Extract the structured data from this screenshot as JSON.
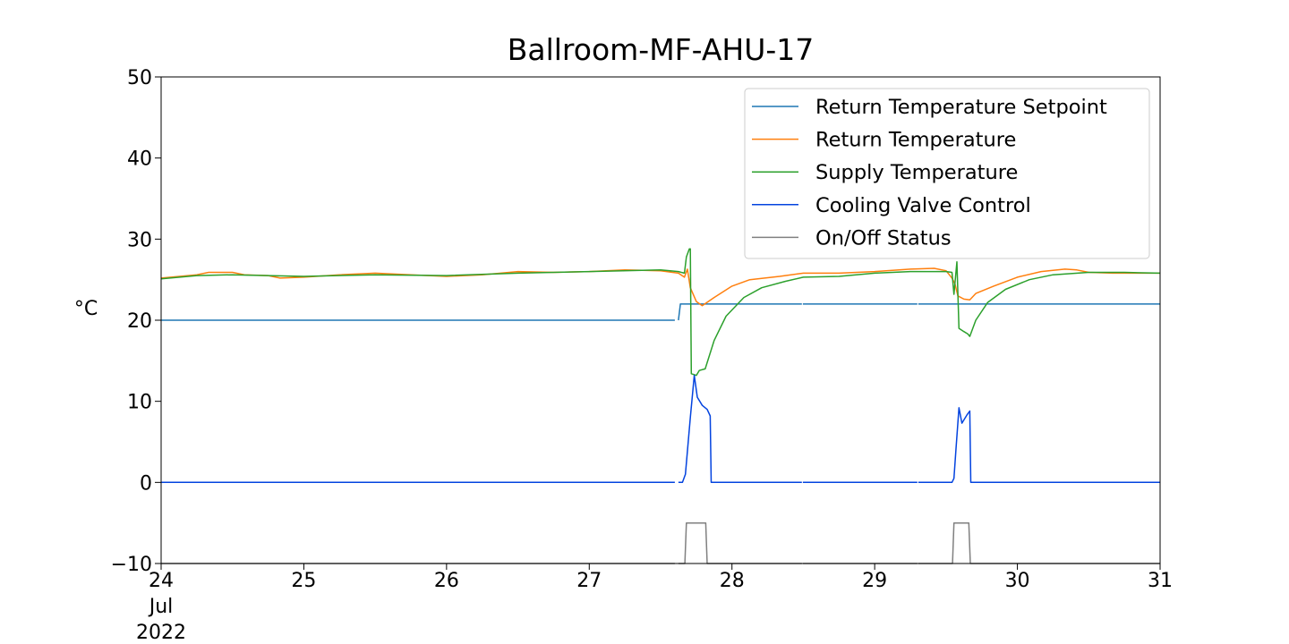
{
  "chart_data": {
    "type": "line",
    "title": "Ballroom-MF-AHU-17",
    "ylabel": "°C",
    "xlabel": "",
    "ylim": [
      -10,
      50
    ],
    "xlim": [
      "2022-07-24",
      "2022-07-31"
    ],
    "yticks": [
      -10,
      0,
      10,
      20,
      30,
      40,
      50
    ],
    "xticks": [
      {
        "x": "2022-07-24",
        "lines": [
          "24",
          "Jul",
          "2022"
        ]
      },
      {
        "x": "2022-07-25",
        "lines": [
          "25"
        ]
      },
      {
        "x": "2022-07-26",
        "lines": [
          "26"
        ]
      },
      {
        "x": "2022-07-27",
        "lines": [
          "27"
        ]
      },
      {
        "x": "2022-07-28",
        "lines": [
          "28"
        ]
      },
      {
        "x": "2022-07-29",
        "lines": [
          "29"
        ]
      },
      {
        "x": "2022-07-30",
        "lines": [
          "30"
        ]
      },
      {
        "x": "2022-07-31",
        "lines": [
          "31"
        ]
      }
    ],
    "grid": false,
    "legend_position": "top-right",
    "series": [
      {
        "name": "Return Temperature Setpoint",
        "color": "#1f77b4",
        "segments": [
          [
            [
              "2022-07-24T00:00",
              20
            ],
            [
              "2022-07-27T14:24",
              20
            ]
          ],
          [
            [
              "2022-07-27T15:00",
              20
            ],
            [
              "2022-07-27T15:20",
              22
            ],
            [
              "2022-07-28T11:45",
              22
            ]
          ],
          [
            [
              "2022-07-28T11:55",
              22
            ],
            [
              "2022-07-29T07:10",
              22
            ]
          ],
          [
            [
              "2022-07-29T07:20",
              22
            ],
            [
              "2022-07-31T00:00",
              22
            ]
          ]
        ]
      },
      {
        "name": "Return Temperature",
        "color": "#ff7f0e",
        "segments": [
          [
            [
              "2022-07-24T00:00",
              25.2
            ],
            [
              "2022-07-24T06:00",
              25.6
            ],
            [
              "2022-07-24T08:00",
              25.9
            ],
            [
              "2022-07-24T12:00",
              25.9
            ],
            [
              "2022-07-24T14:00",
              25.6
            ],
            [
              "2022-07-24T18:00",
              25.5
            ],
            [
              "2022-07-24T20:00",
              25.2
            ],
            [
              "2022-07-25T00:00",
              25.3
            ],
            [
              "2022-07-25T06:00",
              25.6
            ],
            [
              "2022-07-25T12:00",
              25.8
            ],
            [
              "2022-07-25T18:00",
              25.6
            ],
            [
              "2022-07-26T00:00",
              25.4
            ],
            [
              "2022-07-26T06:00",
              25.6
            ],
            [
              "2022-07-26T12:00",
              26.0
            ],
            [
              "2022-07-26T18:00",
              25.9
            ],
            [
              "2022-07-27T00:00",
              26.0
            ],
            [
              "2022-07-27T06:00",
              26.2
            ],
            [
              "2022-07-27T12:00",
              26.1
            ],
            [
              "2022-07-27T15:00",
              25.8
            ],
            [
              "2022-07-27T16:00",
              25.3
            ],
            [
              "2022-07-27T16:30",
              26.3
            ],
            [
              "2022-07-27T17:00",
              24.0
            ],
            [
              "2022-07-27T18:00",
              22.3
            ],
            [
              "2022-07-27T19:00",
              21.8
            ],
            [
              "2022-07-27T21:00",
              22.8
            ],
            [
              "2022-07-28T00:00",
              24.2
            ],
            [
              "2022-07-28T03:00",
              25.0
            ],
            [
              "2022-07-28T08:00",
              25.4
            ],
            [
              "2022-07-28T12:00",
              25.8
            ],
            [
              "2022-07-28T18:00",
              25.8
            ],
            [
              "2022-07-29T00:00",
              26.0
            ],
            [
              "2022-07-29T06:00",
              26.3
            ],
            [
              "2022-07-29T10:00",
              26.4
            ],
            [
              "2022-07-29T12:00",
              26.1
            ],
            [
              "2022-07-29T13:00",
              25.2
            ],
            [
              "2022-07-29T13:30",
              24.5
            ],
            [
              "2022-07-29T14:00",
              23.0
            ],
            [
              "2022-07-29T15:00",
              22.6
            ],
            [
              "2022-07-29T16:00",
              22.5
            ],
            [
              "2022-07-29T17:00",
              23.3
            ],
            [
              "2022-07-29T20:00",
              24.2
            ],
            [
              "2022-07-30T00:00",
              25.3
            ],
            [
              "2022-07-30T04:00",
              26.0
            ],
            [
              "2022-07-30T08:00",
              26.3
            ],
            [
              "2022-07-30T10:00",
              26.2
            ],
            [
              "2022-07-30T12:00",
              25.9
            ],
            [
              "2022-07-30T16:00",
              25.8
            ],
            [
              "2022-07-31T00:00",
              25.8
            ]
          ]
        ]
      },
      {
        "name": "Supply Temperature",
        "color": "#2ca02c",
        "segments": [
          [
            [
              "2022-07-24T00:00",
              25.1
            ],
            [
              "2022-07-24T06:00",
              25.5
            ],
            [
              "2022-07-24T12:00",
              25.6
            ],
            [
              "2022-07-24T18:00",
              25.5
            ],
            [
              "2022-07-25T00:00",
              25.4
            ],
            [
              "2022-07-25T12:00",
              25.6
            ],
            [
              "2022-07-26T00:00",
              25.5
            ],
            [
              "2022-07-26T12:00",
              25.8
            ],
            [
              "2022-07-27T00:00",
              26.0
            ],
            [
              "2022-07-27T12:00",
              26.2
            ],
            [
              "2022-07-27T15:00",
              26.0
            ],
            [
              "2022-07-27T16:00",
              25.8
            ],
            [
              "2022-07-27T16:20",
              27.8
            ],
            [
              "2022-07-27T16:50",
              28.8
            ],
            [
              "2022-07-27T17:00",
              28.8
            ],
            [
              "2022-07-27T17:10",
              13.4
            ],
            [
              "2022-07-27T18:00",
              13.2
            ],
            [
              "2022-07-27T18:30",
              13.8
            ],
            [
              "2022-07-27T19:30",
              14.0
            ],
            [
              "2022-07-27T21:00",
              17.5
            ],
            [
              "2022-07-27T23:00",
              20.5
            ],
            [
              "2022-07-28T02:00",
              22.8
            ],
            [
              "2022-07-28T05:00",
              24.0
            ],
            [
              "2022-07-28T09:00",
              24.8
            ],
            [
              "2022-07-28T12:00",
              25.3
            ],
            [
              "2022-07-28T18:00",
              25.4
            ],
            [
              "2022-07-29T00:00",
              25.8
            ],
            [
              "2022-07-29T06:00",
              26.0
            ],
            [
              "2022-07-29T12:00",
              26.0
            ],
            [
              "2022-07-29T13:00",
              25.9
            ],
            [
              "2022-07-29T13:20",
              23.2
            ],
            [
              "2022-07-29T13:50",
              27.2
            ],
            [
              "2022-07-29T14:10",
              19.0
            ],
            [
              "2022-07-29T15:00",
              18.6
            ],
            [
              "2022-07-29T15:40",
              18.3
            ],
            [
              "2022-07-29T16:00",
              18.0
            ],
            [
              "2022-07-29T17:00",
              20.0
            ],
            [
              "2022-07-29T19:00",
              22.2
            ],
            [
              "2022-07-29T22:00",
              23.8
            ],
            [
              "2022-07-30T02:00",
              25.0
            ],
            [
              "2022-07-30T06:00",
              25.6
            ],
            [
              "2022-07-30T12:00",
              25.9
            ],
            [
              "2022-07-30T18:00",
              25.9
            ],
            [
              "2022-07-31T00:00",
              25.8
            ]
          ]
        ]
      },
      {
        "name": "Cooling Valve Control",
        "color": "#0343df",
        "segments": [
          [
            [
              "2022-07-24T00:00",
              0
            ],
            [
              "2022-07-27T14:24",
              0
            ]
          ],
          [
            [
              "2022-07-27T15:00",
              0
            ],
            [
              "2022-07-27T15:40",
              0
            ],
            [
              "2022-07-27T16:10",
              1.0
            ],
            [
              "2022-07-27T17:00",
              8.0
            ],
            [
              "2022-07-27T17:40",
              13.2
            ],
            [
              "2022-07-27T18:10",
              10.5
            ],
            [
              "2022-07-27T19:00",
              9.5
            ],
            [
              "2022-07-27T19:50",
              9.0
            ],
            [
              "2022-07-27T20:20",
              8.2
            ],
            [
              "2022-07-27T20:30",
              0
            ],
            [
              "2022-07-28T11:45",
              0
            ]
          ],
          [
            [
              "2022-07-28T11:55",
              0
            ],
            [
              "2022-07-29T07:10",
              0
            ]
          ],
          [
            [
              "2022-07-29T07:20",
              0
            ],
            [
              "2022-07-29T13:00",
              0
            ],
            [
              "2022-07-29T13:20",
              0.5
            ],
            [
              "2022-07-29T13:40",
              4.0
            ],
            [
              "2022-07-29T14:10",
              9.2
            ],
            [
              "2022-07-29T14:40",
              7.3
            ],
            [
              "2022-07-29T15:30",
              8.3
            ],
            [
              "2022-07-29T16:00",
              8.8
            ],
            [
              "2022-07-29T16:10",
              0
            ],
            [
              "2022-07-31T00:00",
              0
            ]
          ]
        ]
      },
      {
        "name": "On/Off Status",
        "color": "#808080",
        "segments": [
          [
            [
              "2022-07-24T00:00",
              -10
            ],
            [
              "2022-07-27T14:24",
              -10
            ]
          ],
          [
            [
              "2022-07-27T15:00",
              -10
            ],
            [
              "2022-07-27T16:05",
              -10
            ],
            [
              "2022-07-27T16:20",
              -5
            ],
            [
              "2022-07-27T19:35",
              -5
            ],
            [
              "2022-07-27T19:50",
              -10
            ],
            [
              "2022-07-28T11:45",
              -10
            ]
          ],
          [
            [
              "2022-07-28T11:55",
              -10
            ],
            [
              "2022-07-29T07:10",
              -10
            ]
          ],
          [
            [
              "2022-07-29T07:20",
              -10
            ],
            [
              "2022-07-29T13:05",
              -10
            ],
            [
              "2022-07-29T13:20",
              -5
            ],
            [
              "2022-07-29T15:50",
              -5
            ],
            [
              "2022-07-29T16:05",
              -10
            ],
            [
              "2022-07-31T00:00",
              -10
            ]
          ]
        ]
      }
    ]
  }
}
